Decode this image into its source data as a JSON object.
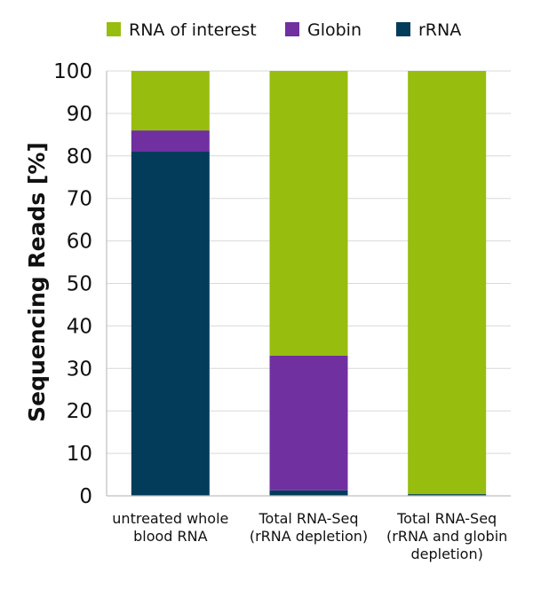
{
  "chart_data": {
    "type": "bar",
    "stacked": true,
    "title": "",
    "xlabel": "",
    "ylabel": "Sequencing Reads [%]",
    "ylim": [
      0,
      100
    ],
    "yticks": [
      0,
      10,
      20,
      30,
      40,
      50,
      60,
      70,
      80,
      90,
      100
    ],
    "grid": true,
    "legend_position": "top",
    "categories": [
      [
        "untreated whole",
        "blood RNA"
      ],
      [
        "Total RNA-Seq",
        "(rRNA depletion)"
      ],
      [
        "Total RNA-Seq",
        "(rRNA and globin",
        "depletion)"
      ]
    ],
    "series": [
      {
        "name": "rRNA",
        "color": "#023c5a",
        "values": [
          81,
          1.3,
          0.4
        ]
      },
      {
        "name": "Globin",
        "color": "#7030a0",
        "values": [
          5,
          31.7,
          0
        ]
      },
      {
        "name": "RNA of interest",
        "color": "#97bd0e",
        "values": [
          14,
          67,
          99.6
        ]
      }
    ],
    "legend_order": [
      "RNA of interest",
      "Globin",
      "rRNA"
    ]
  }
}
